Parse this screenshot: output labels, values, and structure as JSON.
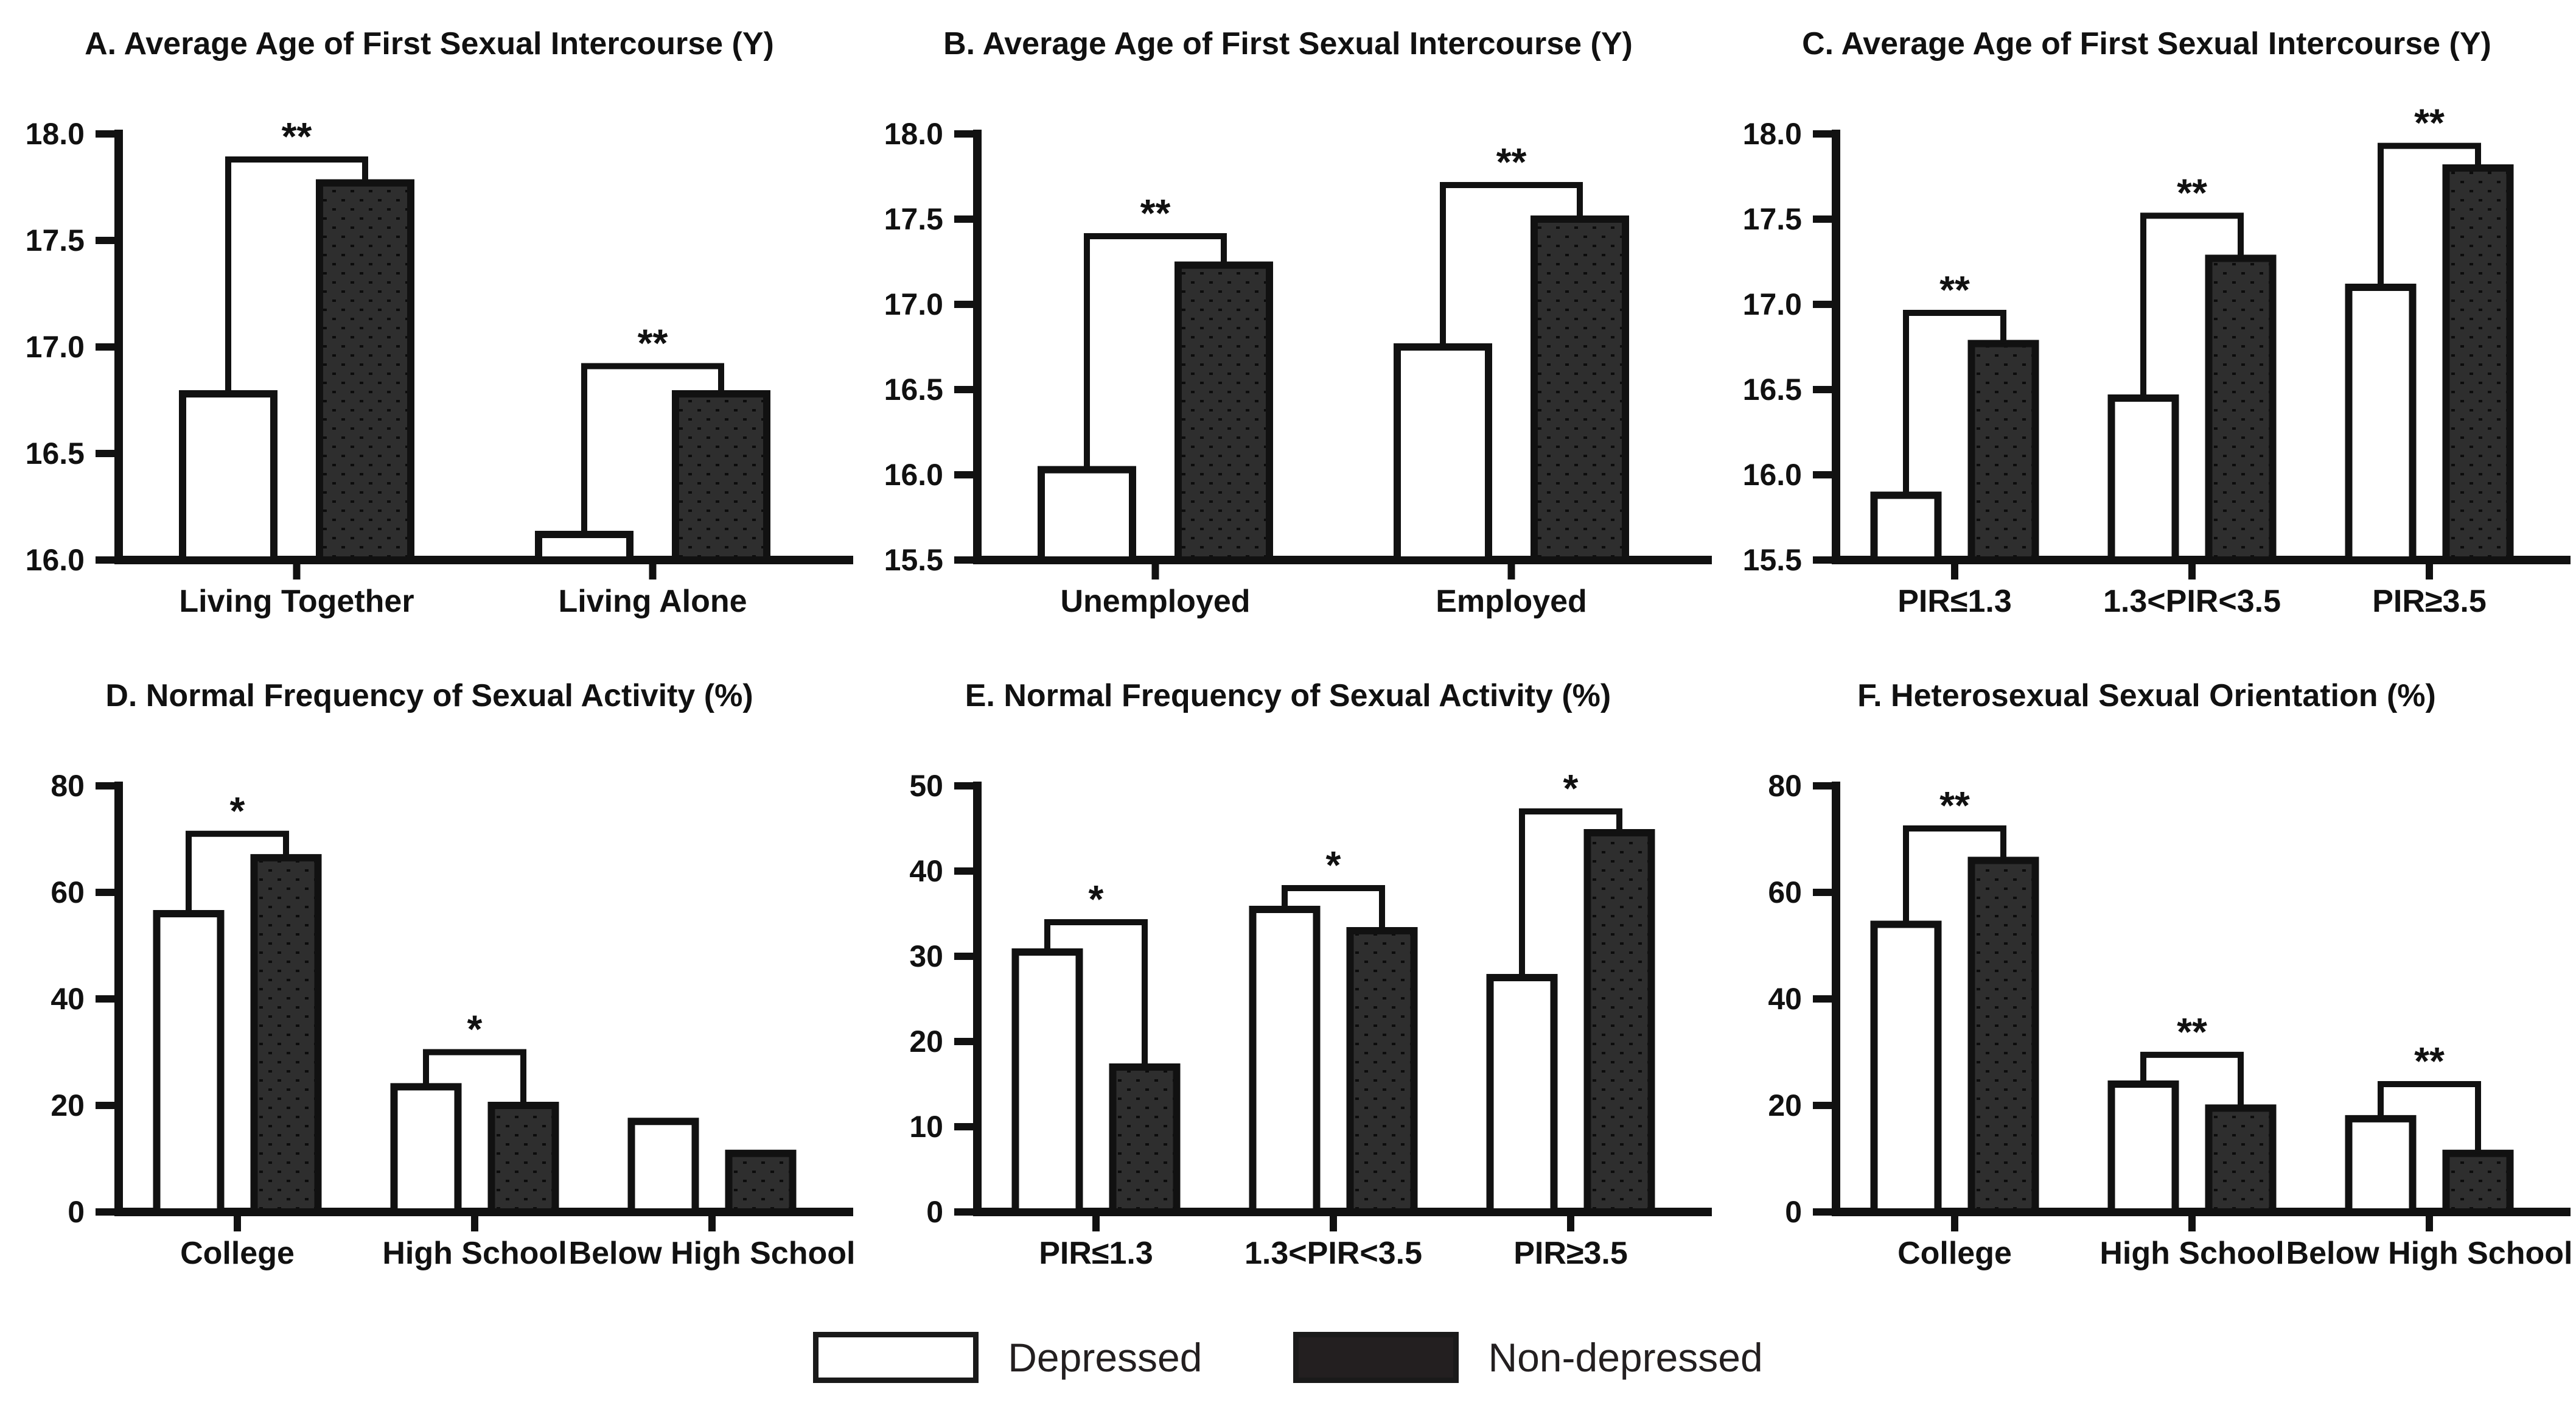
{
  "figure": {
    "background": "#ffffff",
    "ink": "#111111",
    "dark_bar_fill": "#2e2e2e",
    "dark_bar_dot": "#0c0c0c"
  },
  "legend": {
    "position": "bottom-center",
    "items": [
      {
        "label": "Depressed",
        "swatch": "white-outlined"
      },
      {
        "label": "Non-depressed",
        "swatch": "solid-dark"
      }
    ]
  },
  "chart_data": [
    {
      "panel": "A",
      "type": "bar",
      "title": "A. Average Age of First Sexual Intercourse (Y)",
      "xlabel": "",
      "ylabel": "",
      "ylim": [
        16.0,
        18.0
      ],
      "yticks": [
        16.0,
        16.5,
        17.0,
        17.5,
        18.0
      ],
      "tick_decimals": 1,
      "grid": false,
      "categories": [
        "Living Together",
        "Living Alone"
      ],
      "series": [
        {
          "name": "Depressed",
          "values": [
            16.78,
            16.12
          ]
        },
        {
          "name": "Non-depressed",
          "values": [
            17.77,
            16.78
          ]
        }
      ],
      "significance": [
        {
          "label": "**",
          "bracket_y": 17.88
        },
        {
          "label": "**",
          "bracket_y": 16.91
        }
      ]
    },
    {
      "panel": "B",
      "type": "bar",
      "title": "B. Average Age of First Sexual Intercourse (Y)",
      "xlabel": "",
      "ylabel": "",
      "ylim": [
        15.5,
        18.0
      ],
      "yticks": [
        15.5,
        16.0,
        16.5,
        17.0,
        17.5,
        18.0
      ],
      "tick_decimals": 1,
      "grid": false,
      "categories": [
        "Unemployed",
        "Employed"
      ],
      "series": [
        {
          "name": "Depressed",
          "values": [
            16.03,
            16.75
          ]
        },
        {
          "name": "Non-depressed",
          "values": [
            17.23,
            17.5
          ]
        }
      ],
      "significance": [
        {
          "label": "**",
          "bracket_y": 17.4
        },
        {
          "label": "**",
          "bracket_y": 17.7
        }
      ]
    },
    {
      "panel": "C",
      "type": "bar",
      "title": "C. Average Age of First Sexual Intercourse (Y)",
      "xlabel": "",
      "ylabel": "",
      "ylim": [
        15.5,
        18.0
      ],
      "yticks": [
        15.5,
        16.0,
        16.5,
        17.0,
        17.5,
        18.0
      ],
      "tick_decimals": 1,
      "grid": false,
      "categories": [
        "PIR≤1.3",
        "1.3<PIR<3.5",
        "PIR≥3.5"
      ],
      "series": [
        {
          "name": "Depressed",
          "values": [
            15.88,
            16.45,
            17.1
          ]
        },
        {
          "name": "Non-depressed",
          "values": [
            16.77,
            17.27,
            17.8
          ]
        }
      ],
      "significance": [
        {
          "label": "**",
          "bracket_y": 16.95
        },
        {
          "label": "**",
          "bracket_y": 17.52
        },
        {
          "label": "**",
          "bracket_y": 17.93
        }
      ]
    },
    {
      "panel": "D",
      "type": "bar",
      "title": "D. Normal Frequency of Sexual Activity (%)",
      "xlabel": "",
      "ylabel": "",
      "ylim": [
        0,
        80
      ],
      "yticks": [
        0,
        20,
        40,
        60,
        80
      ],
      "tick_decimals": 0,
      "grid": false,
      "categories": [
        "College",
        "High School",
        "Below High School"
      ],
      "series": [
        {
          "name": "Depressed",
          "values": [
            56,
            23.5,
            17
          ]
        },
        {
          "name": "Non-depressed",
          "values": [
            66.5,
            20,
            11
          ]
        }
      ],
      "significance": [
        {
          "label": "*",
          "bracket_y": 71
        },
        {
          "label": "*",
          "bracket_y": 30
        },
        null
      ]
    },
    {
      "panel": "E",
      "type": "bar",
      "title": "E. Normal Frequency of Sexual Activity (%)",
      "xlabel": "",
      "ylabel": "",
      "ylim": [
        0,
        50
      ],
      "yticks": [
        0,
        10,
        20,
        30,
        40,
        50
      ],
      "tick_decimals": 0,
      "grid": false,
      "categories": [
        "PIR≤1.3",
        "1.3<PIR<3.5",
        "PIR≥3.5"
      ],
      "series": [
        {
          "name": "Depressed",
          "values": [
            30.5,
            35.5,
            27.5
          ]
        },
        {
          "name": "Non-depressed",
          "values": [
            17,
            33,
            44.5
          ]
        }
      ],
      "significance": [
        {
          "label": "*",
          "bracket_y": 34
        },
        {
          "label": "*",
          "bracket_y": 38
        },
        {
          "label": "*",
          "bracket_y": 47
        }
      ]
    },
    {
      "panel": "F",
      "type": "bar",
      "title": "F. Heterosexual Sexual Orientation (%)",
      "xlabel": "",
      "ylabel": "",
      "ylim": [
        0,
        80
      ],
      "yticks": [
        0,
        20,
        40,
        60,
        80
      ],
      "tick_decimals": 0,
      "grid": false,
      "categories": [
        "College",
        "High School",
        "Below High School"
      ],
      "series": [
        {
          "name": "Depressed",
          "values": [
            54,
            24,
            17.5
          ]
        },
        {
          "name": "Non-depressed",
          "values": [
            66,
            19.5,
            11
          ]
        }
      ],
      "significance": [
        {
          "label": "**",
          "bracket_y": 72
        },
        {
          "label": "**",
          "bracket_y": 29.5
        },
        {
          "label": "**",
          "bracket_y": 24
        }
      ]
    }
  ]
}
